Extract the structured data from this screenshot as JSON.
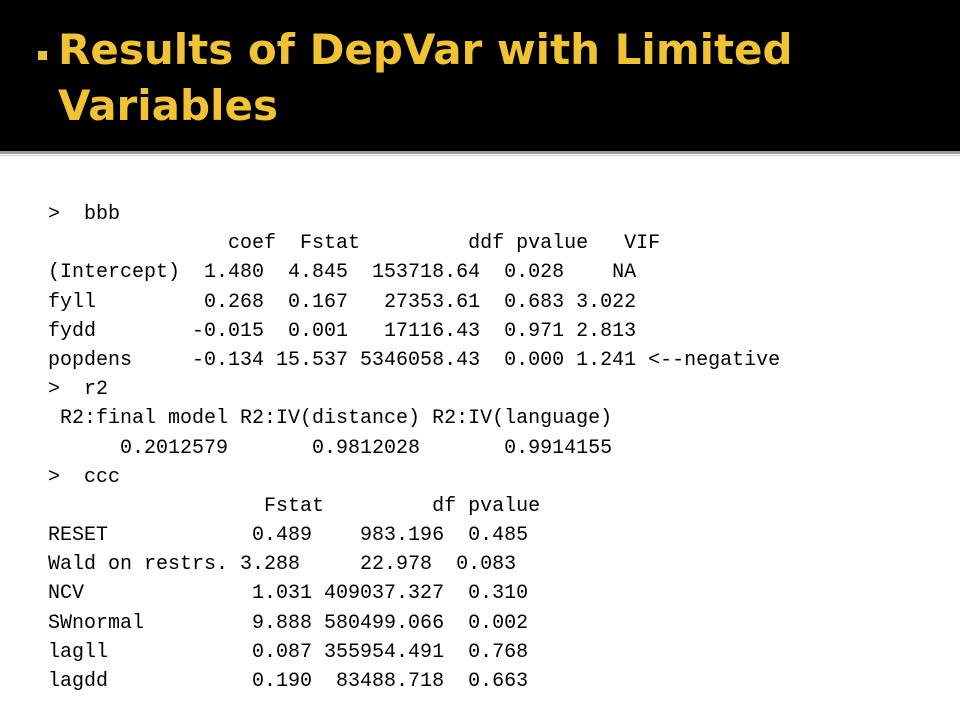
{
  "slide": {
    "title": "Results of DepVar with Limited Variables",
    "accent_color": "#f1c232",
    "header_bg": "#000000"
  },
  "console": {
    "lines": [
      ">  bbb",
      "               coef  Fstat         ddf pvalue   VIF",
      "(Intercept)  1.480  4.845  153718.64  0.028    NA",
      "fyll         0.268  0.167   27353.61  0.683 3.022",
      "fydd        -0.015  0.001   17116.43  0.971 2.813",
      "popdens     -0.134 15.537 5346058.43  0.000 1.241 <--negative",
      ">  r2",
      " R2:final model R2:IV(distance) R2:IV(language)",
      "      0.2012579       0.9812028       0.9914155",
      ">  ccc",
      "                  Fstat         df pvalue",
      "RESET            0.489    983.196  0.485",
      "Wald on restrs. 3.288     22.978  0.083",
      "NCV              1.031 409037.327  0.310",
      "SWnormal         9.888 580499.066  0.002",
      "lagll            0.087 355954.491  0.768",
      "lagdd            0.190  83488.718  0.663"
    ]
  }
}
